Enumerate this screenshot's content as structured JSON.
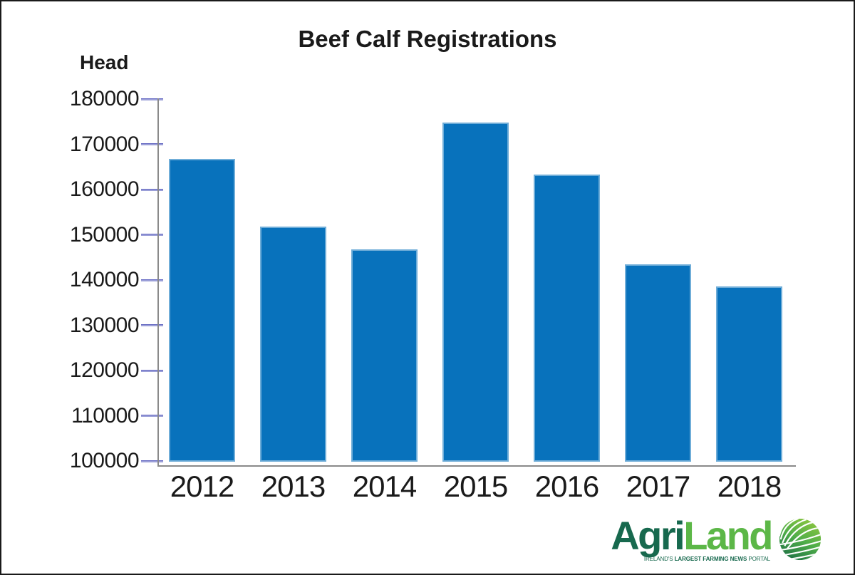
{
  "frame": {
    "background": "#ffffff",
    "border_color": "#1a1a1a"
  },
  "chart_data": {
    "type": "bar",
    "title": "Beef Calf Registrations",
    "ylabel": "Head",
    "xlabel": "",
    "categories": [
      "2012",
      "2013",
      "2014",
      "2015",
      "2016",
      "2017",
      "2018"
    ],
    "values": [
      167000,
      152000,
      147000,
      175000,
      163500,
      143700,
      138800
    ],
    "ylim": [
      100000,
      180000
    ],
    "yticks": [
      180000,
      170000,
      160000,
      150000,
      140000,
      130000,
      120000,
      110000,
      100000
    ],
    "grid": false,
    "legend": "none",
    "bar_color": "#0872BC",
    "bar_edge_color": "#a9cce8",
    "tick_color": "#9b9fd8",
    "axis_color": "#8a8a8a",
    "text_color": "#1a1a1a"
  },
  "logo": {
    "brand_part1": "Agri",
    "brand_part2": "Land",
    "tagline_part1": "IRELAND'S",
    "tagline_part2": "LARGEST FARMING NEWS",
    "tagline_part3": "PORTAL",
    "dark_green": "#17694E",
    "light_green": "#5CB747",
    "globe_icon": "yarn-ball-globe-icon"
  }
}
